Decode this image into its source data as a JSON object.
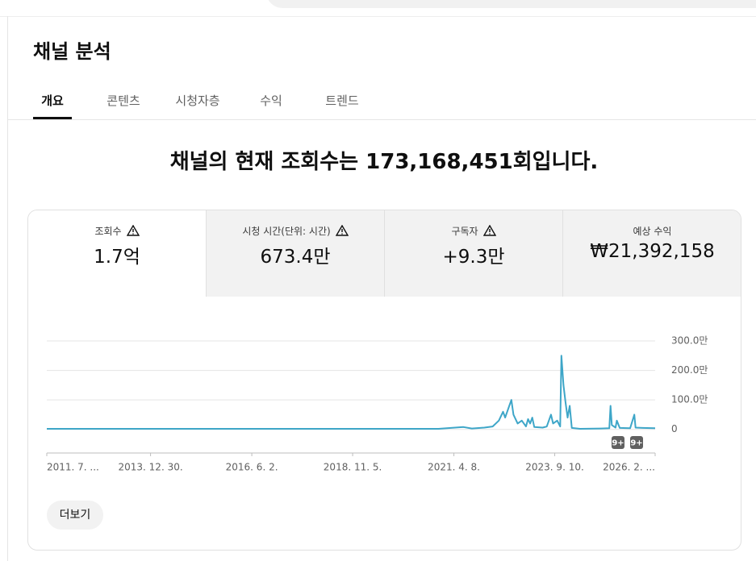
{
  "header": {
    "title": "채널 분석"
  },
  "tabs": [
    "개요",
    "콘텐츠",
    "시청자층",
    "수익",
    "트렌드"
  ],
  "headline": "채널의 현재 조회수는 173,168,451회입니다.",
  "metrics": [
    {
      "label": "조회수",
      "value": "1.7억"
    },
    {
      "label": "시청 시간(단위: 시간)",
      "value": "673.4만"
    },
    {
      "label": "구독자",
      "value": "+9.3만"
    },
    {
      "label": "예상 수익",
      "value": "₩21,392,158"
    }
  ],
  "chart_data": {
    "type": "line",
    "color": "#3ea6c8",
    "grid": true,
    "x": [
      2011.5,
      2015,
      2019,
      2020.9,
      2021.2,
      2021.5,
      2021.7,
      2022.0,
      2022.2,
      2022.35,
      2022.45,
      2022.5,
      2022.6,
      2022.65,
      2022.7,
      2022.8,
      2022.9,
      2023.0,
      2023.05,
      2023.1,
      2023.15,
      2023.2,
      2023.4,
      2023.5,
      2023.6,
      2023.65,
      2023.75,
      2023.82,
      2023.85,
      2023.9,
      2023.95,
      2024.0,
      2024.05,
      2024.1,
      2024.3,
      2024.8,
      2025.0,
      2025.03,
      2025.06,
      2025.15,
      2025.18,
      2025.25,
      2025.5,
      2025.6,
      2025.63,
      2025.8,
      2026.1
    ],
    "values": [
      20000,
      20000,
      20000,
      20000,
      50000,
      80000,
      30000,
      60000,
      100000,
      300000,
      600000,
      400000,
      800000,
      1000000,
      500000,
      200000,
      300000,
      100000,
      350000,
      200000,
      400000,
      80000,
      60000,
      100000,
      500000,
      200000,
      300000,
      100000,
      2500000,
      1500000,
      900000,
      400000,
      800000,
      50000,
      20000,
      30000,
      40000,
      800000,
      150000,
      60000,
      300000,
      50000,
      40000,
      500000,
      60000,
      50000,
      40000
    ],
    "xlim": [
      2011.5,
      2026.1
    ],
    "xticks": [
      {
        "value": 2011.5,
        "label": "2011. 7. ..."
      },
      {
        "value": 2013.99,
        "label": "2013. 12. 30."
      },
      {
        "value": 2016.42,
        "label": "2016. 6. 2."
      },
      {
        "value": 2018.84,
        "label": "2018. 11. 5."
      },
      {
        "value": 2021.27,
        "label": "2021. 4. 8."
      },
      {
        "value": 2023.69,
        "label": "2023. 9. 10."
      },
      {
        "value": 2026.1,
        "label": "2026. 2. ..."
      }
    ],
    "ylim": [
      -800000,
      3000000
    ],
    "yticks": [
      0,
      {
        "value": 1000000,
        "label": "100.0만"
      },
      {
        "value": 2000000,
        "label": "200.0만"
      },
      {
        "value": 3000000,
        "label": "300.0만"
      }
    ],
    "annotations": [
      "9+",
      "9+"
    ]
  },
  "more_button": "더보기"
}
